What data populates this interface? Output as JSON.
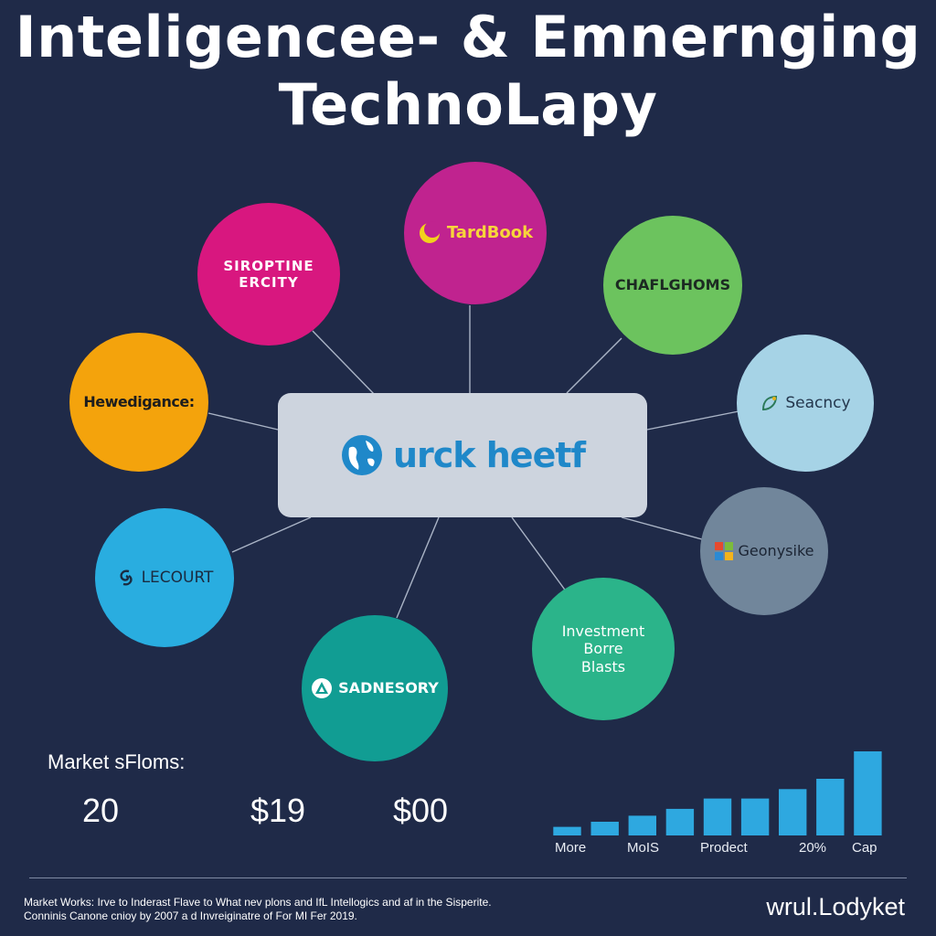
{
  "title": {
    "line1": "Inteligencee- & Emnernging",
    "line2": "TechnoLapy"
  },
  "hub": {
    "brand": "urck heetf"
  },
  "bubbles": {
    "top_left": "SIROPTINE\nERCITY",
    "top": "TardBook",
    "top_right": "CHAFLGHOMS",
    "left": "Hewedigance:",
    "right": "Seacncy",
    "lower_left": "LECOURT",
    "lower_right": "Geonysike",
    "bottom_left": "SADNESORY",
    "bottom_right": "Investment\nBorre\nBlasts"
  },
  "colors": {
    "background": "#1f2a48",
    "hub": "#cdd4de",
    "bars": "#2ea8e0"
  },
  "market": {
    "label": "Market sFloms:",
    "stats": [
      "20",
      "$19",
      "$00"
    ]
  },
  "bars": {
    "values": [
      1,
      1.6,
      2.3,
      3.1,
      4.3,
      4.3,
      5.4,
      6.6,
      9.8
    ],
    "axis_labels": [
      "More",
      "MoIS",
      "Prodect",
      "20%",
      "Cap"
    ]
  },
  "footer": {
    "line1": "Market Works: Irve to Inderast Flave to What nev plons and IfL Intellogics and af in the Sisperite.",
    "line2": "Conninis Canone cnioy by 2007 a d Invreiginatre of For MI Fer 2019.",
    "site": "wrul.Lodyket"
  }
}
